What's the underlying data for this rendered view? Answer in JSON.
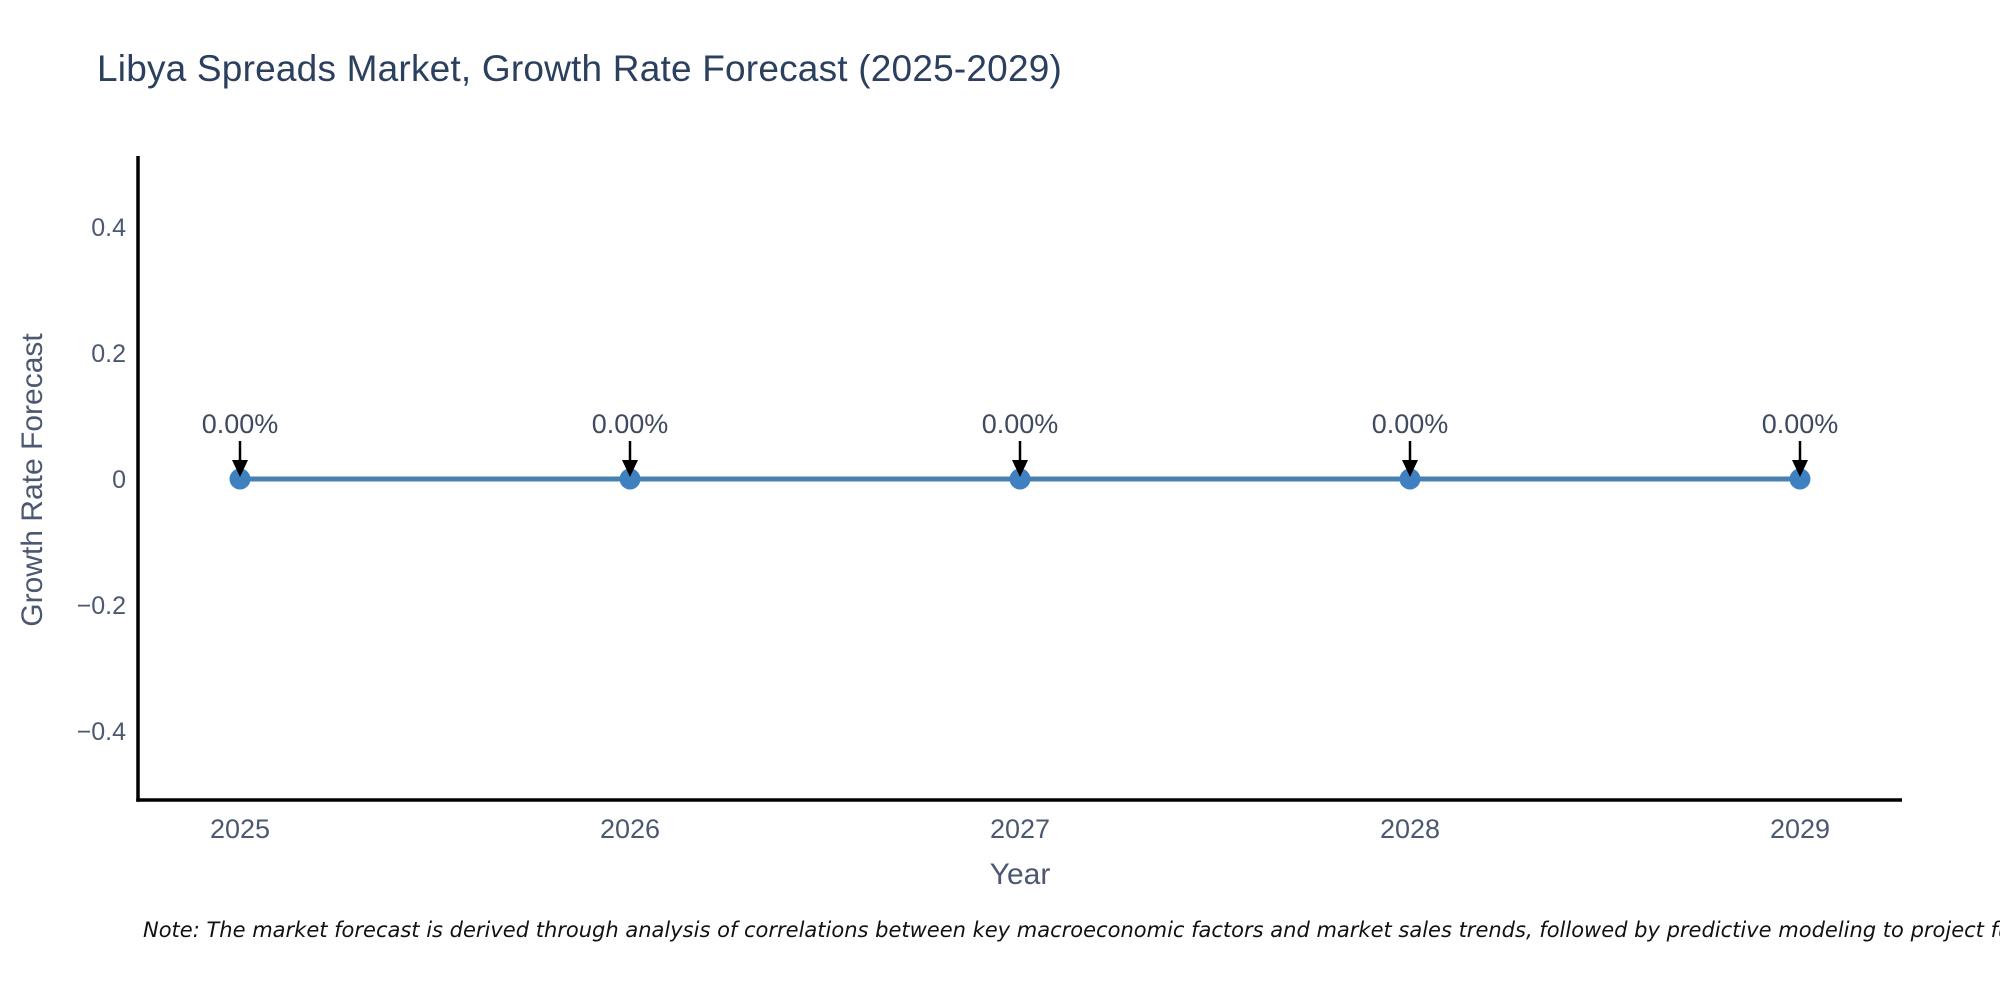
{
  "note": {
    "text": "Note: The market forecast is derived through analysis of correlations between key macroeconomic factors and market sales trends, followed by predictive modeling to project future sales."
  },
  "chart_data": {
    "type": "line",
    "title": "Libya Spreads Market, Growth Rate Forecast (2025-2029)",
    "categories": [
      "2025",
      "2026",
      "2027",
      "2028",
      "2029"
    ],
    "series": [
      {
        "name": "Growth Rate Forecast",
        "values": [
          0,
          0,
          0,
          0,
          0
        ]
      }
    ],
    "point_labels": [
      "0.00%",
      "0.00%",
      "0.00%",
      "0.00%",
      "0.00%"
    ],
    "xlabel": "Year",
    "ylabel": "Growth Rate Forecast",
    "ylim": [
      -0.51,
      0.51
    ],
    "yticks": [
      {
        "value": 0.4,
        "label": "0.4"
      },
      {
        "value": 0.2,
        "label": "0.2"
      },
      {
        "value": 0,
        "label": "0"
      },
      {
        "value": -0.2,
        "label": "−0.2"
      },
      {
        "value": -0.4,
        "label": "−0.4"
      }
    ],
    "grid": false,
    "legend": "none",
    "colors": {
      "line": "#4a80b0",
      "marker": "#3f80c1",
      "axis": "#000000",
      "tick_text": "#4c5870",
      "title_text": "#2b3f5f",
      "annotation_text": "#3e4a5f",
      "arrow": "#000000"
    }
  }
}
